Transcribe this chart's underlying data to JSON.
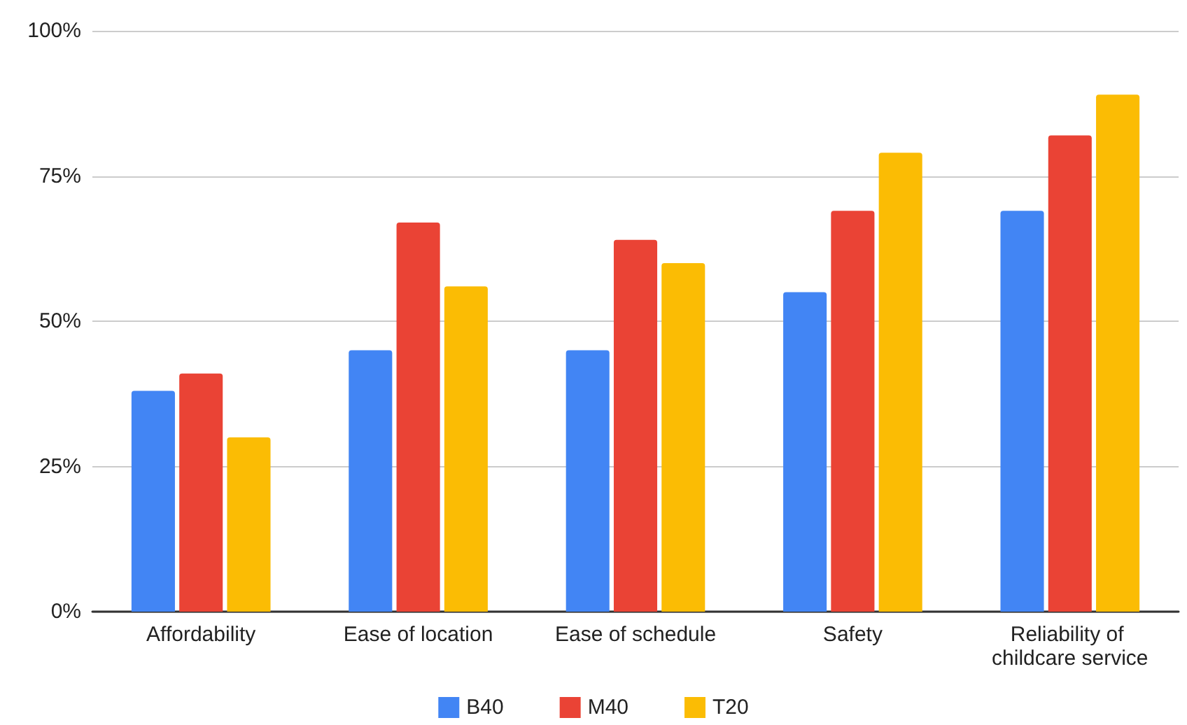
{
  "chart_data": {
    "type": "bar",
    "categories": [
      "Affordability",
      "Ease of location",
      "Ease of schedule",
      "Safety",
      "Reliability of childcare service"
    ],
    "series": [
      {
        "name": "B40",
        "color": "#4285f4",
        "values": [
          38,
          45,
          45,
          55,
          69
        ]
      },
      {
        "name": "M40",
        "color": "#ea4335",
        "values": [
          41,
          67,
          64,
          69,
          82
        ]
      },
      {
        "name": "T20",
        "color": "#fbbc04",
        "values": [
          30,
          56,
          60,
          79,
          89
        ]
      }
    ],
    "ylim": [
      0,
      100
    ],
    "yticks": [
      {
        "value": 0,
        "label": "0%"
      },
      {
        "value": 25,
        "label": "25%"
      },
      {
        "value": 50,
        "label": "50%"
      },
      {
        "value": 75,
        "label": "75%"
      },
      {
        "value": 100,
        "label": "100%"
      }
    ],
    "grid": "y",
    "legend": "bottom"
  }
}
